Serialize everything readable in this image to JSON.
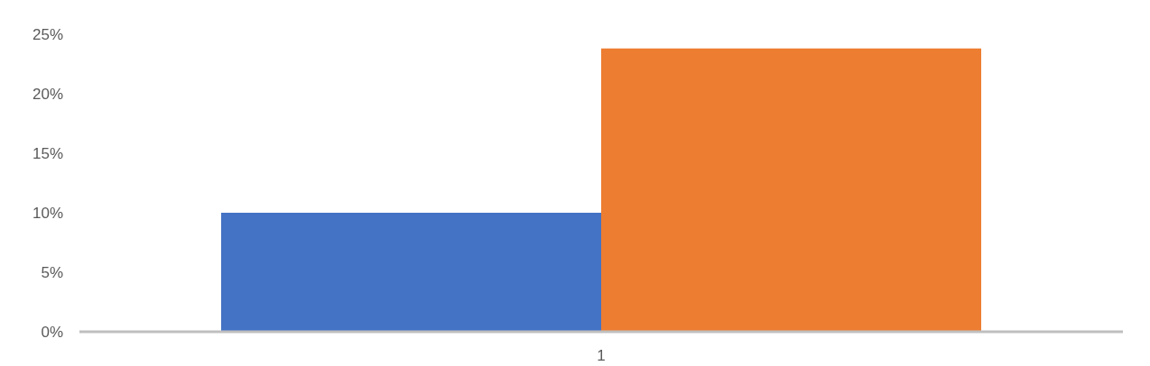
{
  "chart_data": {
    "type": "bar",
    "categories": [
      "1"
    ],
    "series": [
      {
        "color": "#4472c4",
        "values": [
          10
        ]
      },
      {
        "color": "#ed7d31",
        "values": [
          23.8
        ]
      }
    ],
    "ylim": [
      0,
      25
    ],
    "yticks": [
      {
        "value": 0,
        "label": "0%"
      },
      {
        "value": 5,
        "label": "5%"
      },
      {
        "value": 10,
        "label": "10%"
      },
      {
        "value": 15,
        "label": "15%"
      },
      {
        "value": 20,
        "label": "20%"
      },
      {
        "value": 25,
        "label": "25%"
      }
    ],
    "grid": false,
    "legend": false
  }
}
